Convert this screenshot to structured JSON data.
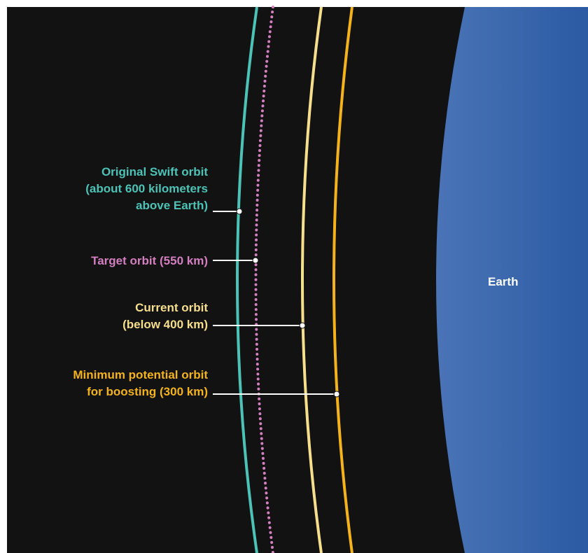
{
  "colors": {
    "space": "#121212",
    "earth_light": "#4a74b6",
    "earth_dark": "#2b5aa3",
    "swift_orbit": "#4cc3b6",
    "target_orbit": "#d37fc0",
    "current_orbit": "#f6df8c",
    "minimum_orbit": "#f4b21c",
    "leader_line": "#ffffff"
  },
  "labels": {
    "swift": {
      "lines": [
        "Original Swift orbit",
        "(about 600 kilometers",
        "above Earth)"
      ],
      "color": "#4cc3b6"
    },
    "target": {
      "lines": [
        "Target orbit (550 km)"
      ],
      "color": "#d37fc0"
    },
    "current": {
      "lines": [
        "Current orbit",
        "(below 400 km)"
      ],
      "color": "#f6df8c"
    },
    "minimum": {
      "lines": [
        "Minimum potential orbit",
        "for boosting (300 km)"
      ],
      "color": "#f4b21c"
    },
    "earth": "Earth"
  }
}
